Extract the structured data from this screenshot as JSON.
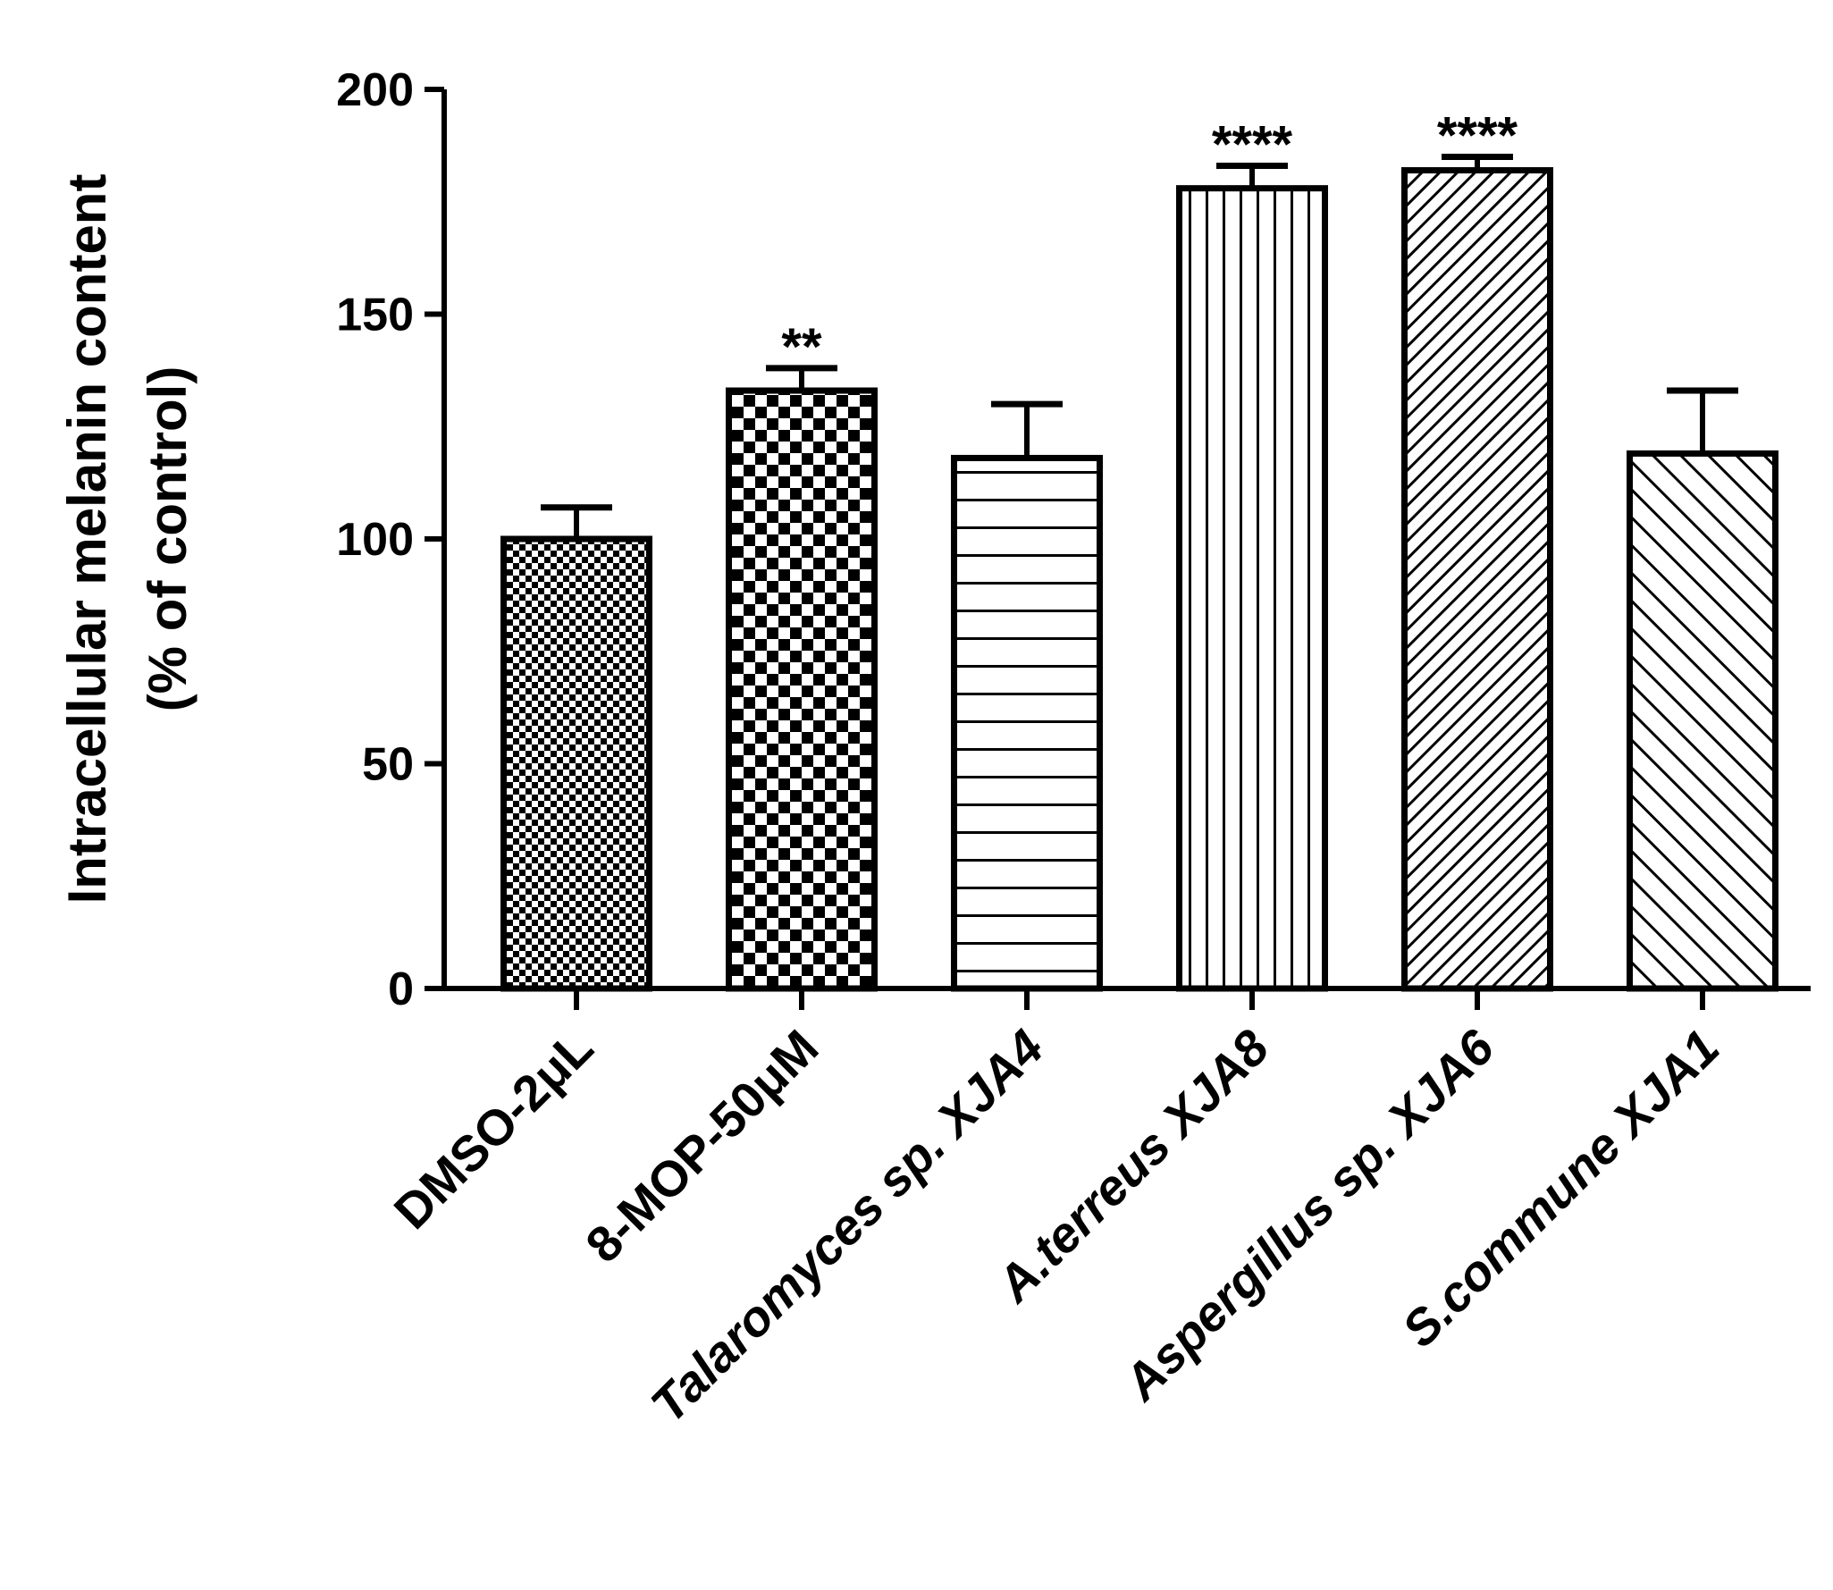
{
  "chart_data": {
    "type": "bar",
    "categories": [
      {
        "prefix": "DMSO-2μL",
        "italic": ""
      },
      {
        "prefix": "8-MOP-50μM",
        "italic": ""
      },
      {
        "prefix": "",
        "italic": "Talaromyces sp. XJA4"
      },
      {
        "prefix": "",
        "italic": "A.terreus XJA8"
      },
      {
        "prefix": "",
        "italic": "Aspergillus sp. XJA6"
      },
      {
        "prefix": "",
        "italic": "S.commune XJA1"
      }
    ],
    "values": [
      100,
      133,
      118,
      178,
      182,
      119
    ],
    "errors": [
      7,
      5,
      12,
      5,
      3,
      14
    ],
    "significance": [
      "",
      "**",
      "",
      "****",
      "****",
      ""
    ],
    "patterns": [
      "fine-checker",
      "checker",
      "horizontal",
      "vertical",
      "diagonal-fine",
      "diagonal"
    ],
    "ylabel_line1": "Intracellular melanin content",
    "ylabel_line2": "(% of control)",
    "ylim": [
      0,
      200
    ],
    "yticks": [
      0,
      50,
      100,
      150,
      200
    ],
    "grid": false,
    "colors": {
      "ink": "#000000",
      "fill": "#ffffff"
    }
  }
}
